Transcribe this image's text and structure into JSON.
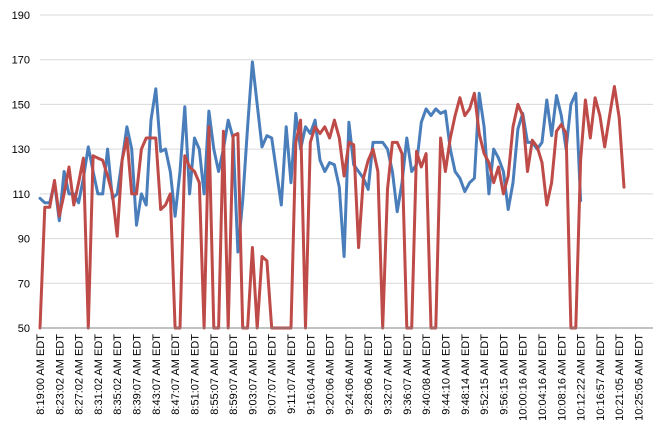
{
  "chart_data": {
    "type": "line",
    "title": "",
    "xlabel": "",
    "ylabel": "",
    "ylim": [
      50,
      190
    ],
    "yticks": [
      50,
      70,
      90,
      110,
      130,
      150,
      170,
      190
    ],
    "grid": true,
    "legend": "none",
    "x_tick_labels": [
      "8:19:00 AM EDT",
      "8:23:02 AM EDT",
      "8:27:02 AM EDT",
      "8:31:02 AM EDT",
      "8:35:02 AM EDT",
      "8:39:07 AM EDT",
      "8:43:07 AM EDT",
      "8:47:07 AM EDT",
      "8:51:07 AM EDT",
      "8:55:07 AM EDT",
      "8:59:07 AM EDT",
      "9:03:07 AM EDT",
      "9:07:07 AM EDT",
      "9:11:07 AM EDT",
      "9:16:04 AM EDT",
      "9:20:06 AM EDT",
      "9:24:06 AM EDT",
      "9:28:06 AM EDT",
      "9:32:07 AM EDT",
      "9:36:07 AM EDT",
      "9:40:08 AM EDT",
      "9:44:10 AM EDT",
      "9:48:14 AM EDT",
      "9:52:15 AM EDT",
      "9:56:15 AM EDT",
      "10:00:16 AM EDT",
      "10:04:16 AM EDT",
      "10:08:16 AM EDT",
      "10:12:22 AM EDT",
      "10:16:57 AM EDT",
      "10:21:05 AM EDT",
      "10:25:05 AM EDT"
    ],
    "points_per_label": 4,
    "series": [
      {
        "color": "#4a7ebb",
        "values": [
          108,
          106,
          106,
          115,
          98,
          120,
          110,
          110,
          106,
          117,
          131,
          120,
          110,
          110,
          130,
          108,
          110,
          125,
          140,
          130,
          96,
          110,
          105,
          143,
          157,
          129,
          130,
          120,
          100,
          120,
          149,
          110,
          135,
          130,
          110,
          147,
          130,
          120,
          130,
          143,
          135,
          84,
          107,
          140,
          169,
          150,
          131,
          136,
          135,
          120,
          105,
          140,
          115,
          146,
          130,
          140,
          137,
          143,
          125,
          120,
          124,
          123,
          113,
          82,
          142,
          123,
          120,
          117,
          112,
          133,
          133,
          133,
          130,
          120,
          102,
          115,
          135,
          120,
          123,
          142,
          148,
          145,
          148,
          146,
          147,
          130,
          120,
          117,
          111,
          115,
          117,
          155,
          140,
          110,
          130,
          126,
          120,
          103,
          115,
          139,
          146,
          133,
          133,
          130,
          133,
          152,
          136,
          154,
          145,
          130,
          150,
          155,
          107
        ]
      },
      {
        "color": "#be4b48",
        "values": [
          50,
          104,
          104,
          116,
          100,
          110,
          122,
          105,
          115,
          126,
          50,
          127,
          126,
          125,
          118,
          110,
          91,
          125,
          135,
          110,
          110,
          130,
          135,
          135,
          135,
          103,
          105,
          110,
          50,
          50,
          127,
          122,
          120,
          115,
          50,
          140,
          50,
          50,
          138,
          50,
          136,
          137,
          50,
          50,
          86,
          50,
          82,
          80,
          50,
          50,
          50,
          50,
          50,
          133,
          143,
          50,
          133,
          140,
          137,
          140,
          135,
          143,
          135,
          118,
          133,
          132,
          86,
          117,
          125,
          130,
          120,
          50,
          112,
          133,
          133,
          128,
          50,
          50,
          129,
          122,
          128,
          50,
          50,
          135,
          120,
          135,
          145,
          153,
          145,
          148,
          155,
          137,
          128,
          124,
          115,
          122,
          110,
          118,
          140,
          150,
          145,
          120,
          134,
          131,
          124,
          105,
          115,
          138,
          141,
          137,
          50,
          50,
          125,
          152,
          135,
          153,
          145,
          131,
          145,
          158,
          144,
          113
        ]
      }
    ]
  }
}
